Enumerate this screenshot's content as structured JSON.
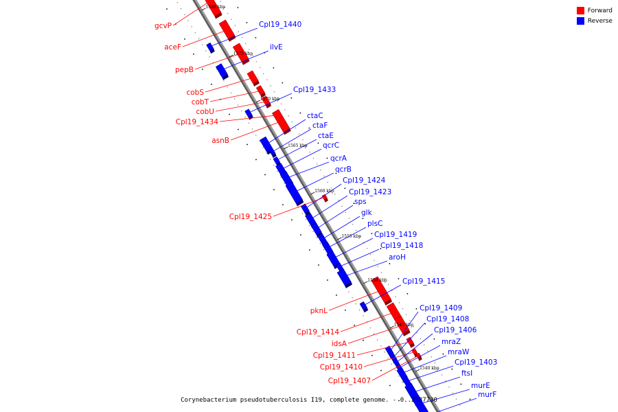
{
  "legend": {
    "forward_label": "Forward",
    "reverse_label": "Reverse",
    "forward_color": "#ff0000",
    "reverse_color": "#0000ff"
  },
  "caption": "Corynebacterium pseudotuberculosis I19, complete genome. - 0..2337730",
  "ticks": [
    "1580 kbp",
    "1575 kbp",
    "1570 kbp",
    "1565 kbp",
    "1560 kbp",
    "1555 kbp",
    "1550 kbp",
    "1545 kbp",
    "1540 kbp"
  ],
  "genes": [
    {
      "name": "gcvP",
      "strand": "forward"
    },
    {
      "name": "aceF",
      "strand": "forward"
    },
    {
      "name": "pepB",
      "strand": "forward"
    },
    {
      "name": "cobS",
      "strand": "forward"
    },
    {
      "name": "cobT",
      "strand": "forward"
    },
    {
      "name": "cobU",
      "strand": "forward"
    },
    {
      "name": "Cpl19_1434",
      "strand": "forward"
    },
    {
      "name": "asnB",
      "strand": "forward"
    },
    {
      "name": "Cpl19_1425",
      "strand": "forward"
    },
    {
      "name": "pknL",
      "strand": "forward"
    },
    {
      "name": "Cpl19_1414",
      "strand": "forward"
    },
    {
      "name": "idsA",
      "strand": "forward"
    },
    {
      "name": "Cpl19_1411",
      "strand": "forward"
    },
    {
      "name": "Cpl19_1410",
      "strand": "forward"
    },
    {
      "name": "Cpl19_1407",
      "strand": "forward"
    },
    {
      "name": "Cpl19_1440",
      "strand": "reverse"
    },
    {
      "name": "ilvE",
      "strand": "reverse"
    },
    {
      "name": "Cpl19_1433",
      "strand": "reverse"
    },
    {
      "name": "ctaC",
      "strand": "reverse"
    },
    {
      "name": "ctaF",
      "strand": "reverse"
    },
    {
      "name": "ctaE",
      "strand": "reverse"
    },
    {
      "name": "qcrC",
      "strand": "reverse"
    },
    {
      "name": "qcrA",
      "strand": "reverse"
    },
    {
      "name": "qcrB",
      "strand": "reverse"
    },
    {
      "name": "Cpl19_1424",
      "strand": "reverse"
    },
    {
      "name": "Cpl19_1423",
      "strand": "reverse"
    },
    {
      "name": "sps",
      "strand": "reverse"
    },
    {
      "name": "glk",
      "strand": "reverse"
    },
    {
      "name": "plsC",
      "strand": "reverse"
    },
    {
      "name": "Cpl19_1419",
      "strand": "reverse"
    },
    {
      "name": "Cpl19_1418",
      "strand": "reverse"
    },
    {
      "name": "aroH",
      "strand": "reverse"
    },
    {
      "name": "Cpl19_1415",
      "strand": "reverse"
    },
    {
      "name": "Cpl19_1409",
      "strand": "reverse"
    },
    {
      "name": "Cpl19_1408",
      "strand": "reverse"
    },
    {
      "name": "Cpl19_1406",
      "strand": "reverse"
    },
    {
      "name": "mraZ",
      "strand": "reverse"
    },
    {
      "name": "mraW",
      "strand": "reverse"
    },
    {
      "name": "Cpl19_1403",
      "strand": "reverse"
    },
    {
      "name": "ftsI",
      "strand": "reverse"
    },
    {
      "name": "murE",
      "strand": "reverse"
    },
    {
      "name": "murF",
      "strand": "reverse"
    }
  ]
}
